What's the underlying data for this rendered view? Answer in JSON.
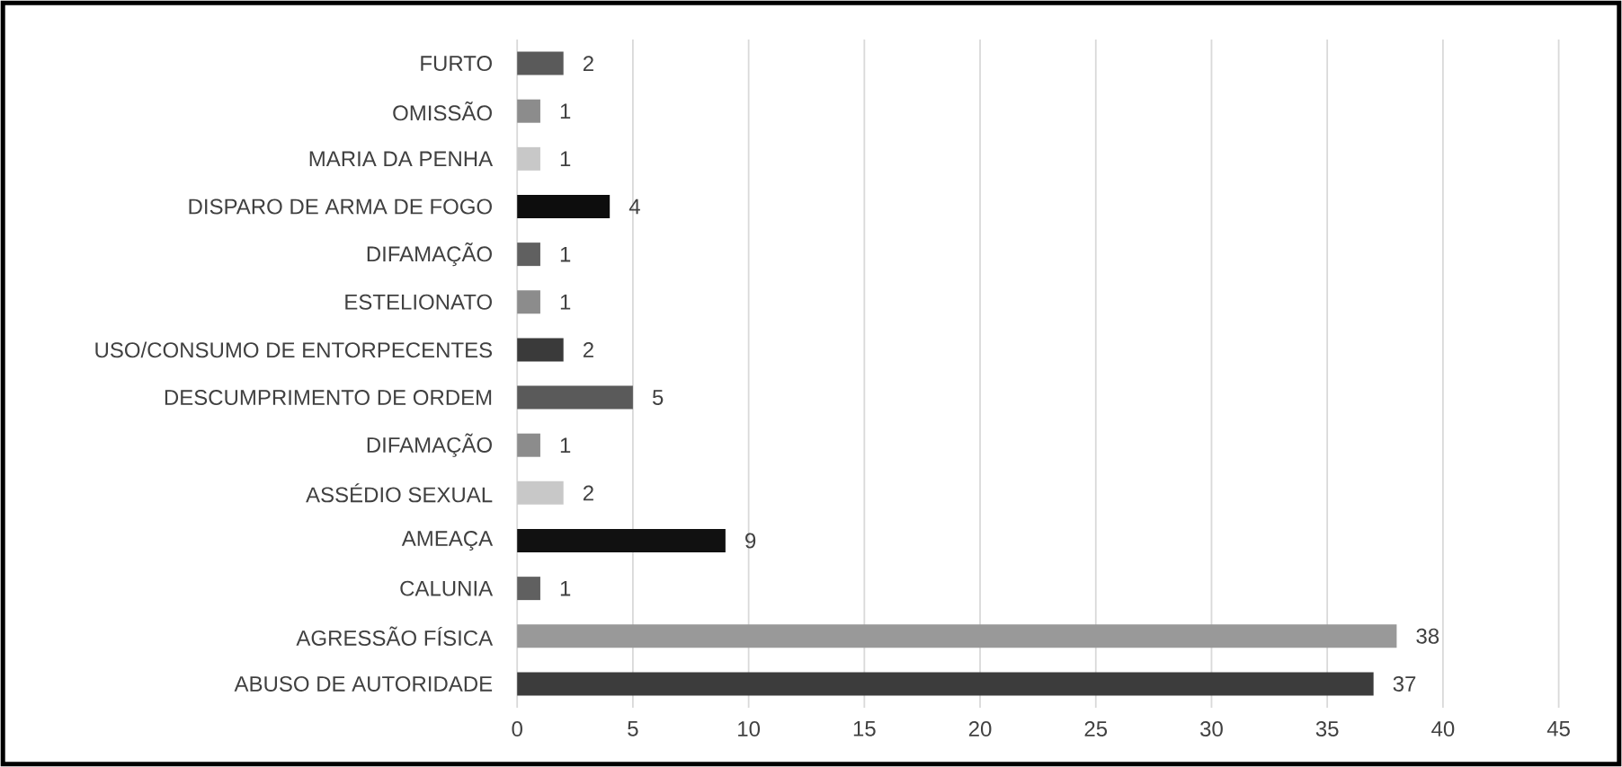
{
  "chart_data": {
    "type": "bar",
    "orientation": "horizontal",
    "categories": [
      "FURTO",
      "OMISSÃO",
      "MARIA DA PENHA",
      "DISPARO DE ARMA DE FOGO",
      "DIFAMAÇÃO",
      "ESTELIONATO",
      "USO/CONSUMO DE ENTORPECENTES",
      "DESCUMPRIMENTO DE ORDEM",
      "DIFAMAÇÃO",
      "ASSÉDIO SEXUAL",
      "AMEAÇA",
      "CALUNIA",
      "AGRESSÃO FÍSICA",
      "ABUSO DE AUTORIDADE"
    ],
    "values": [
      2,
      1,
      1,
      4,
      1,
      1,
      2,
      5,
      1,
      2,
      9,
      1,
      38,
      37
    ],
    "colors": [
      "#5a5a5a",
      "#8c8c8c",
      "#c8c8c8",
      "#0d0d0d",
      "#606060",
      "#8c8c8c",
      "#3a3a3a",
      "#5a5a5a",
      "#8c8c8c",
      "#c8c8c8",
      "#111111",
      "#606060",
      "#999999",
      "#3c3c3c"
    ],
    "xlim": [
      0,
      45
    ],
    "xticks": [
      0,
      5,
      10,
      15,
      20,
      25,
      30,
      35,
      40,
      45
    ],
    "grid": "x",
    "data_labels": true
  }
}
